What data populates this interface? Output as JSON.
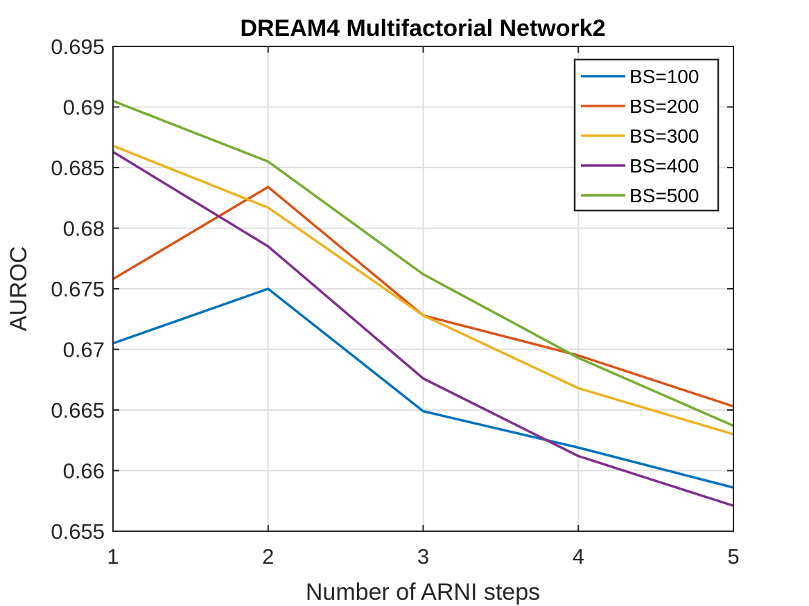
{
  "chart_data": {
    "type": "line",
    "title": "DREAM4 Multifactorial Network2",
    "xlabel": "Number of ARNI steps",
    "ylabel": "AUROC",
    "x": [
      1,
      2,
      3,
      4,
      5
    ],
    "xlim": [
      1,
      5
    ],
    "ylim": [
      0.655,
      0.695
    ],
    "xticks": [
      1,
      2,
      3,
      4,
      5
    ],
    "xtick_labels": [
      "1",
      "2",
      "3",
      "4",
      "5"
    ],
    "yticks": [
      0.655,
      0.66,
      0.665,
      0.67,
      0.675,
      0.68,
      0.685,
      0.69,
      0.695
    ],
    "ytick_labels": [
      "0.655",
      "0.66",
      "0.665",
      "0.67",
      "0.675",
      "0.68",
      "0.685",
      "0.69",
      "0.695"
    ],
    "grid": true,
    "legend_position": "top-right",
    "series": [
      {
        "name": "BS=100",
        "color": "#0072BD",
        "values": [
          0.6705,
          0.675,
          0.6649,
          0.6619,
          0.6586
        ]
      },
      {
        "name": "BS=200",
        "color": "#D95319",
        "values": [
          0.6758,
          0.6834,
          0.6728,
          0.6695,
          0.6653
        ]
      },
      {
        "name": "BS=300",
        "color": "#EDB120",
        "values": [
          0.6868,
          0.6817,
          0.6728,
          0.6668,
          0.663
        ]
      },
      {
        "name": "BS=400",
        "color": "#7E2F8E",
        "values": [
          0.6863,
          0.6785,
          0.6676,
          0.6612,
          0.6571
        ]
      },
      {
        "name": "BS=500",
        "color": "#77AC30",
        "values": [
          0.6905,
          0.6855,
          0.6762,
          0.6693,
          0.6637
        ]
      }
    ]
  }
}
